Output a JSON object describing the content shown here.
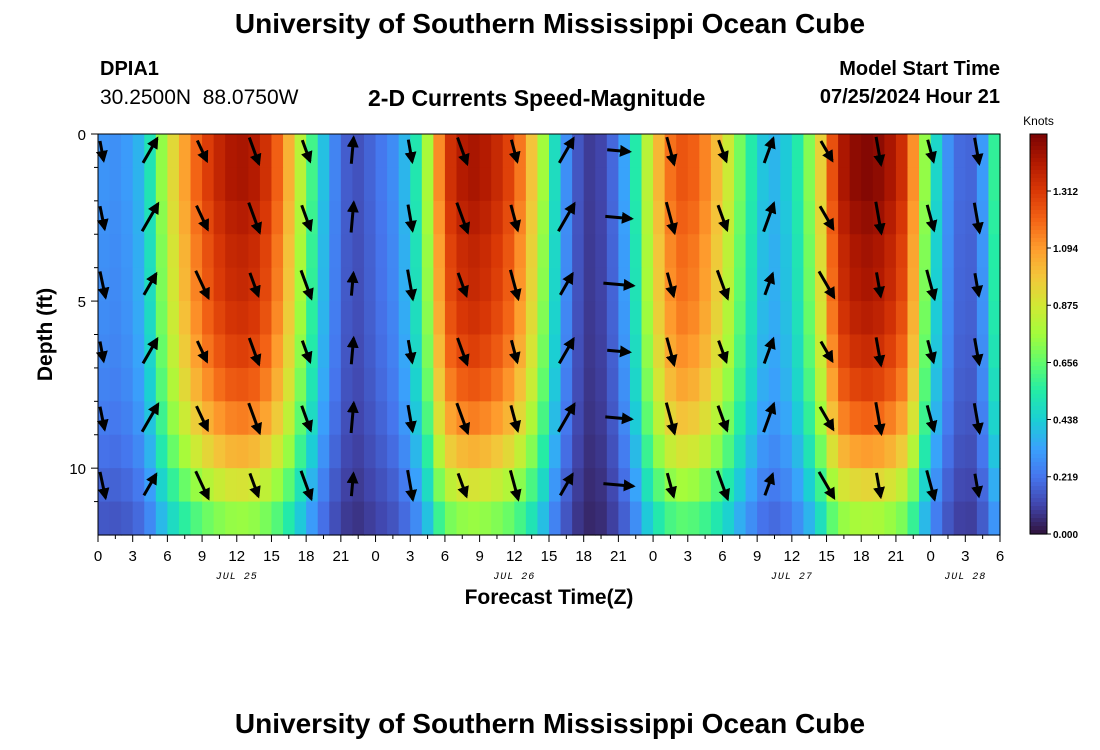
{
  "page_title": "University of Southern Mississippi Ocean Cube",
  "footer_title": "University of Southern Mississippi Ocean Cube",
  "station": {
    "id": "DPIA1",
    "coords": "30.2500N  88.0750W"
  },
  "model": {
    "label": "Model Start Time",
    "time": "07/25/2024 Hour 21"
  },
  "chart_data": {
    "type": "heatmap",
    "title": "2-D Currents Speed-Magnitude",
    "xlabel": "Forecast Time(Z)",
    "ylabel": "Depth (ft)",
    "x_ticks": [
      "0",
      "3",
      "6",
      "9",
      "12",
      "15",
      "18",
      "21",
      "0",
      "3",
      "6",
      "9",
      "12",
      "15",
      "18",
      "21",
      "0",
      "3",
      "6",
      "9",
      "12",
      "15",
      "18",
      "21",
      "0",
      "3",
      "6"
    ],
    "x_tick_hours": [
      0,
      3,
      6,
      9,
      12,
      15,
      18,
      21,
      24,
      27,
      30,
      33,
      36,
      39,
      42,
      45,
      48,
      51,
      54,
      57,
      60,
      63,
      66,
      69,
      72,
      75,
      78
    ],
    "date_labels": [
      {
        "text": "JUL 25",
        "hour": 12
      },
      {
        "text": "JUL 26",
        "hour": 36
      },
      {
        "text": "JUL 27",
        "hour": 60
      },
      {
        "text": "JUL 28",
        "hour": 75
      }
    ],
    "x_range_hours": [
      0,
      78
    ],
    "y_ticks": [
      0,
      5,
      10
    ],
    "y_tick_labels": [
      "0",
      "5",
      "10"
    ],
    "y_range_ft": [
      0,
      12
    ],
    "colorbar": {
      "unit": "Knots",
      "ticks": [
        0.0,
        0.219,
        0.438,
        0.656,
        0.875,
        1.094,
        1.312
      ],
      "tick_labels": [
        "0.000",
        "0.219",
        "0.438",
        "0.656",
        "0.875",
        "1.094",
        "1.312"
      ],
      "range": [
        0,
        1.53
      ],
      "colors": [
        "#30123b",
        "#4145ab",
        "#4675ed",
        "#39a2fc",
        "#1bcfd4",
        "#24eca6",
        "#61fc6c",
        "#a4fc3b",
        "#d1e834",
        "#f3c63a",
        "#fe9b2d",
        "#f36315",
        "#d93806",
        "#b11901",
        "#7a0403"
      ]
    },
    "speed_by_hour": [
      [
        0,
        0.3
      ],
      [
        2,
        0.28
      ],
      [
        4,
        0.4
      ],
      [
        6,
        0.85
      ],
      [
        8,
        1.15
      ],
      [
        10,
        1.35
      ],
      [
        12,
        1.45
      ],
      [
        14,
        1.4
      ],
      [
        16,
        1.15
      ],
      [
        18,
        0.7
      ],
      [
        20,
        0.3
      ],
      [
        22,
        0.12
      ],
      [
        24,
        0.2
      ],
      [
        26,
        0.3
      ],
      [
        28,
        0.6
      ],
      [
        30,
        1.3
      ],
      [
        32,
        1.45
      ],
      [
        34,
        1.4
      ],
      [
        36,
        1.25
      ],
      [
        38,
        0.9
      ],
      [
        40,
        0.35
      ],
      [
        42,
        0.08
      ],
      [
        44,
        0.12
      ],
      [
        46,
        0.4
      ],
      [
        48,
        0.95
      ],
      [
        50,
        1.25
      ],
      [
        52,
        1.2
      ],
      [
        54,
        0.95
      ],
      [
        56,
        0.6
      ],
      [
        58,
        0.35
      ],
      [
        60,
        0.45
      ],
      [
        62,
        0.8
      ],
      [
        64,
        1.4
      ],
      [
        66,
        1.52
      ],
      [
        68,
        1.48
      ],
      [
        70,
        1.3
      ],
      [
        72,
        0.55
      ],
      [
        74,
        0.2
      ],
      [
        76,
        0.18
      ],
      [
        78,
        0.7
      ]
    ],
    "depth_factor": [
      1.0,
      1.0,
      0.98,
      0.96,
      0.95,
      0.93,
      0.9,
      0.86,
      0.8,
      0.72,
      0.62,
      0.52
    ],
    "vectors": [
      {
        "hour": 0,
        "angle": 150
      },
      {
        "hour": 4.5,
        "angle": 30
      },
      {
        "hour": 9,
        "angle": 155
      },
      {
        "hour": 13.5,
        "angle": 160
      },
      {
        "hour": 18,
        "angle": 160
      },
      {
        "hour": 22,
        "angle": 5
      },
      {
        "hour": 27,
        "angle": 170
      },
      {
        "hour": 31.5,
        "angle": 160
      },
      {
        "hour": 36,
        "angle": 165
      },
      {
        "hour": 40.5,
        "angle": 30
      },
      {
        "hour": 45,
        "angle": 95
      },
      {
        "hour": 49.5,
        "angle": 165
      },
      {
        "hour": 54,
        "angle": 160
      },
      {
        "hour": 58,
        "angle": 20
      },
      {
        "hour": 63,
        "angle": 150
      },
      {
        "hour": 67.5,
        "angle": 170
      },
      {
        "hour": 72,
        "angle": 165
      },
      {
        "hour": 76,
        "angle": 170
      }
    ]
  }
}
